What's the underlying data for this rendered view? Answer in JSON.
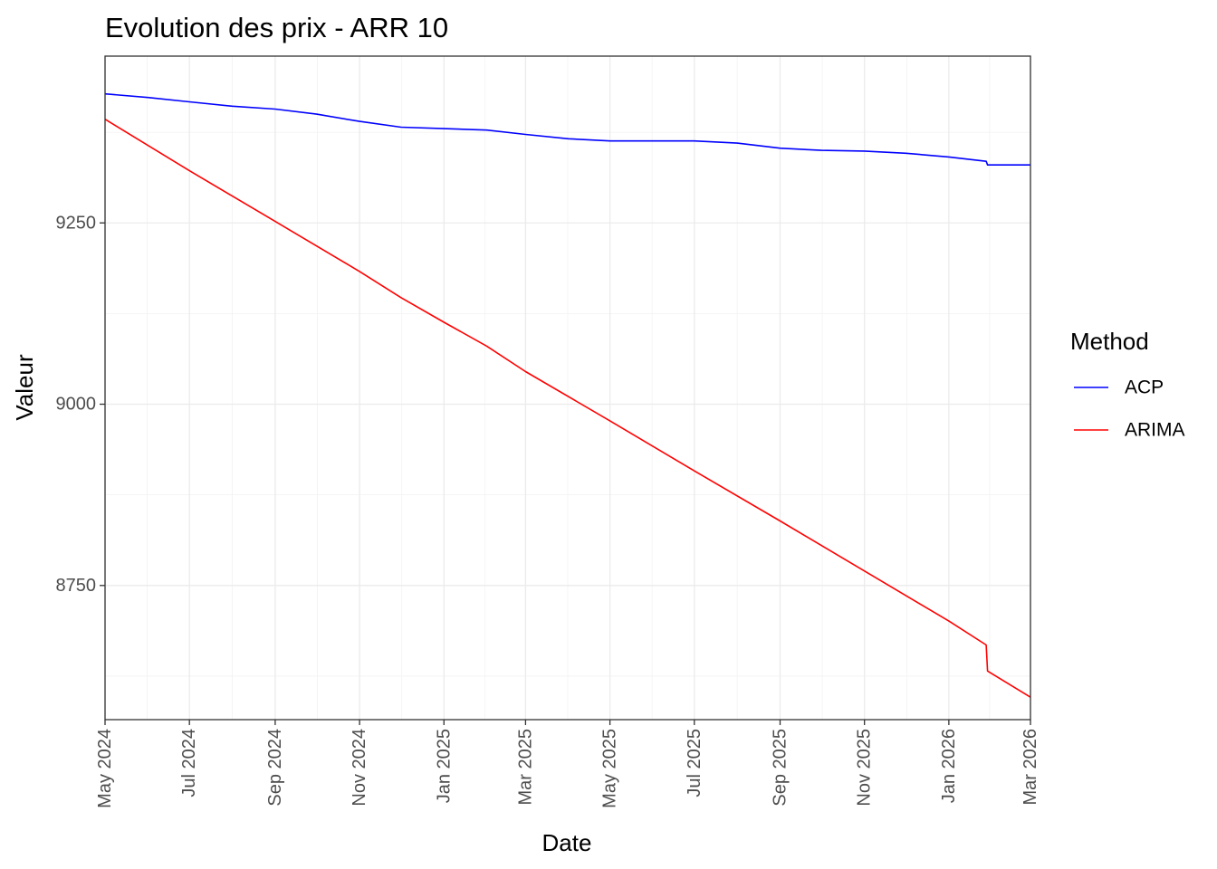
{
  "chart_data": {
    "type": "line",
    "title": "Evolution des prix - ARR 10",
    "xlabel": "Date",
    "ylabel": "Valeur",
    "grid": true,
    "legend_title": "Method",
    "legend_position": "right",
    "xlim": [
      "2024-05-01",
      "2026-03-01"
    ],
    "ylim": [
      8565,
      9480
    ],
    "x_ticks": [
      "2024-05-01",
      "2024-07-01",
      "2024-09-01",
      "2024-11-01",
      "2025-01-01",
      "2025-03-01",
      "2025-05-01",
      "2025-07-01",
      "2025-09-01",
      "2025-11-01",
      "2026-01-01",
      "2026-03-01"
    ],
    "x_tick_labels": [
      "May 2024",
      "Jul 2024",
      "Sep 2024",
      "Nov 2024",
      "Jan 2025",
      "Mar 2025",
      "May 2025",
      "Jul 2025",
      "Sep 2025",
      "Nov 2025",
      "Jan 2026",
      "Mar 2026"
    ],
    "y_ticks": [
      8750,
      9000,
      9250
    ],
    "y_tick_labels": [
      "8750",
      "9000",
      "9250"
    ],
    "series": [
      {
        "name": "ACP",
        "color": "#0000ff",
        "points": [
          [
            "2024-05-01",
            9428
          ],
          [
            "2024-06-01",
            9423
          ],
          [
            "2024-07-01",
            9417
          ],
          [
            "2024-08-01",
            9411
          ],
          [
            "2024-09-01",
            9407
          ],
          [
            "2024-10-01",
            9400
          ],
          [
            "2024-11-01",
            9390
          ],
          [
            "2024-12-01",
            9382
          ],
          [
            "2025-01-01",
            9380
          ],
          [
            "2025-02-01",
            9378
          ],
          [
            "2025-03-01",
            9372
          ],
          [
            "2025-04-01",
            9366
          ],
          [
            "2025-05-01",
            9363
          ],
          [
            "2025-06-01",
            9363
          ],
          [
            "2025-07-01",
            9363
          ],
          [
            "2025-08-01",
            9360
          ],
          [
            "2025-09-01",
            9353
          ],
          [
            "2025-10-01",
            9350
          ],
          [
            "2025-11-01",
            9349
          ],
          [
            "2025-12-01",
            9346
          ],
          [
            "2026-01-01",
            9341
          ],
          [
            "2026-01-28",
            9335
          ],
          [
            "2026-01-29",
            9330
          ],
          [
            "2026-03-01",
            9330
          ]
        ]
      },
      {
        "name": "ARIMA",
        "color": "#ff0000",
        "points": [
          [
            "2024-05-01",
            9393
          ],
          [
            "2024-07-01",
            9322
          ],
          [
            "2024-09-01",
            9252
          ],
          [
            "2024-11-01",
            9183
          ],
          [
            "2024-12-01",
            9147
          ],
          [
            "2025-01-01",
            9113
          ],
          [
            "2025-02-01",
            9080
          ],
          [
            "2025-03-01",
            9045
          ],
          [
            "2025-05-01",
            8977
          ],
          [
            "2025-07-01",
            8908
          ],
          [
            "2025-09-01",
            8839
          ],
          [
            "2025-11-01",
            8770
          ],
          [
            "2026-01-01",
            8701
          ],
          [
            "2026-01-28",
            8668
          ],
          [
            "2026-01-29",
            8632
          ],
          [
            "2026-03-01",
            8596
          ]
        ]
      }
    ]
  }
}
